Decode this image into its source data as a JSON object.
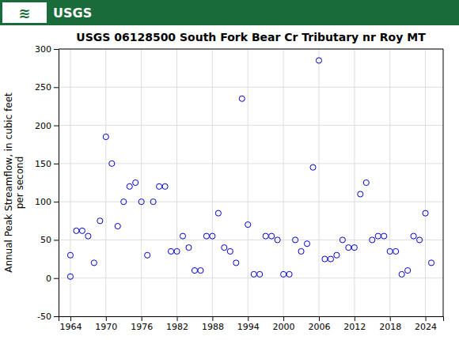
{
  "chart_data": {
    "type": "scatter",
    "title": "USGS 06128500 South Fork Bear Cr Tributary nr Roy MT",
    "ylabel": "Annual Peak Streamflow, in cubic feet\nper second",
    "annotations": [
      "≋",
      "USGS"
    ],
    "x": [
      1964,
      1964,
      1965,
      1966,
      1967,
      1968,
      1969,
      1970,
      1971,
      1972,
      1973,
      1974,
      1975,
      1976,
      1977,
      1978,
      1979,
      1980,
      1981,
      1982,
      1983,
      1984,
      1985,
      1986,
      1987,
      1988,
      1989,
      1990,
      1991,
      1992,
      1993,
      1994,
      1995,
      1996,
      1997,
      1998,
      1999,
      2000,
      2001,
      2002,
      2003,
      2004,
      2005,
      2006,
      2007,
      2008,
      2009,
      2010,
      2011,
      2012,
      2013,
      2014,
      2015,
      2016,
      2017,
      2018,
      2019,
      2020,
      2021,
      2022,
      2023,
      2024,
      2025
    ],
    "values": [
      30,
      2,
      62,
      62,
      55,
      20,
      75,
      185,
      150,
      68,
      100,
      120,
      125,
      100,
      30,
      100,
      120,
      120,
      35,
      35,
      55,
      40,
      10,
      10,
      55,
      55,
      85,
      40,
      35,
      20,
      235,
      70,
      5,
      5,
      55,
      55,
      50,
      5,
      5,
      50,
      35,
      45,
      145,
      285,
      25,
      25,
      30,
      50,
      40,
      40,
      110,
      125,
      50,
      55,
      55,
      35,
      35,
      5,
      10,
      55,
      50,
      85,
      20
    ],
    "color": "#0000cc",
    "marker": "circle",
    "xlim": [
      1962,
      2027
    ],
    "xticks": [
      1964,
      1970,
      1976,
      1982,
      1988,
      1994,
      2000,
      2006,
      2012,
      2018,
      2024
    ],
    "ylim": [
      -50,
      300
    ],
    "yticks": [
      -50,
      0,
      50,
      100,
      150,
      200,
      250,
      300
    ],
    "grid": true
  }
}
